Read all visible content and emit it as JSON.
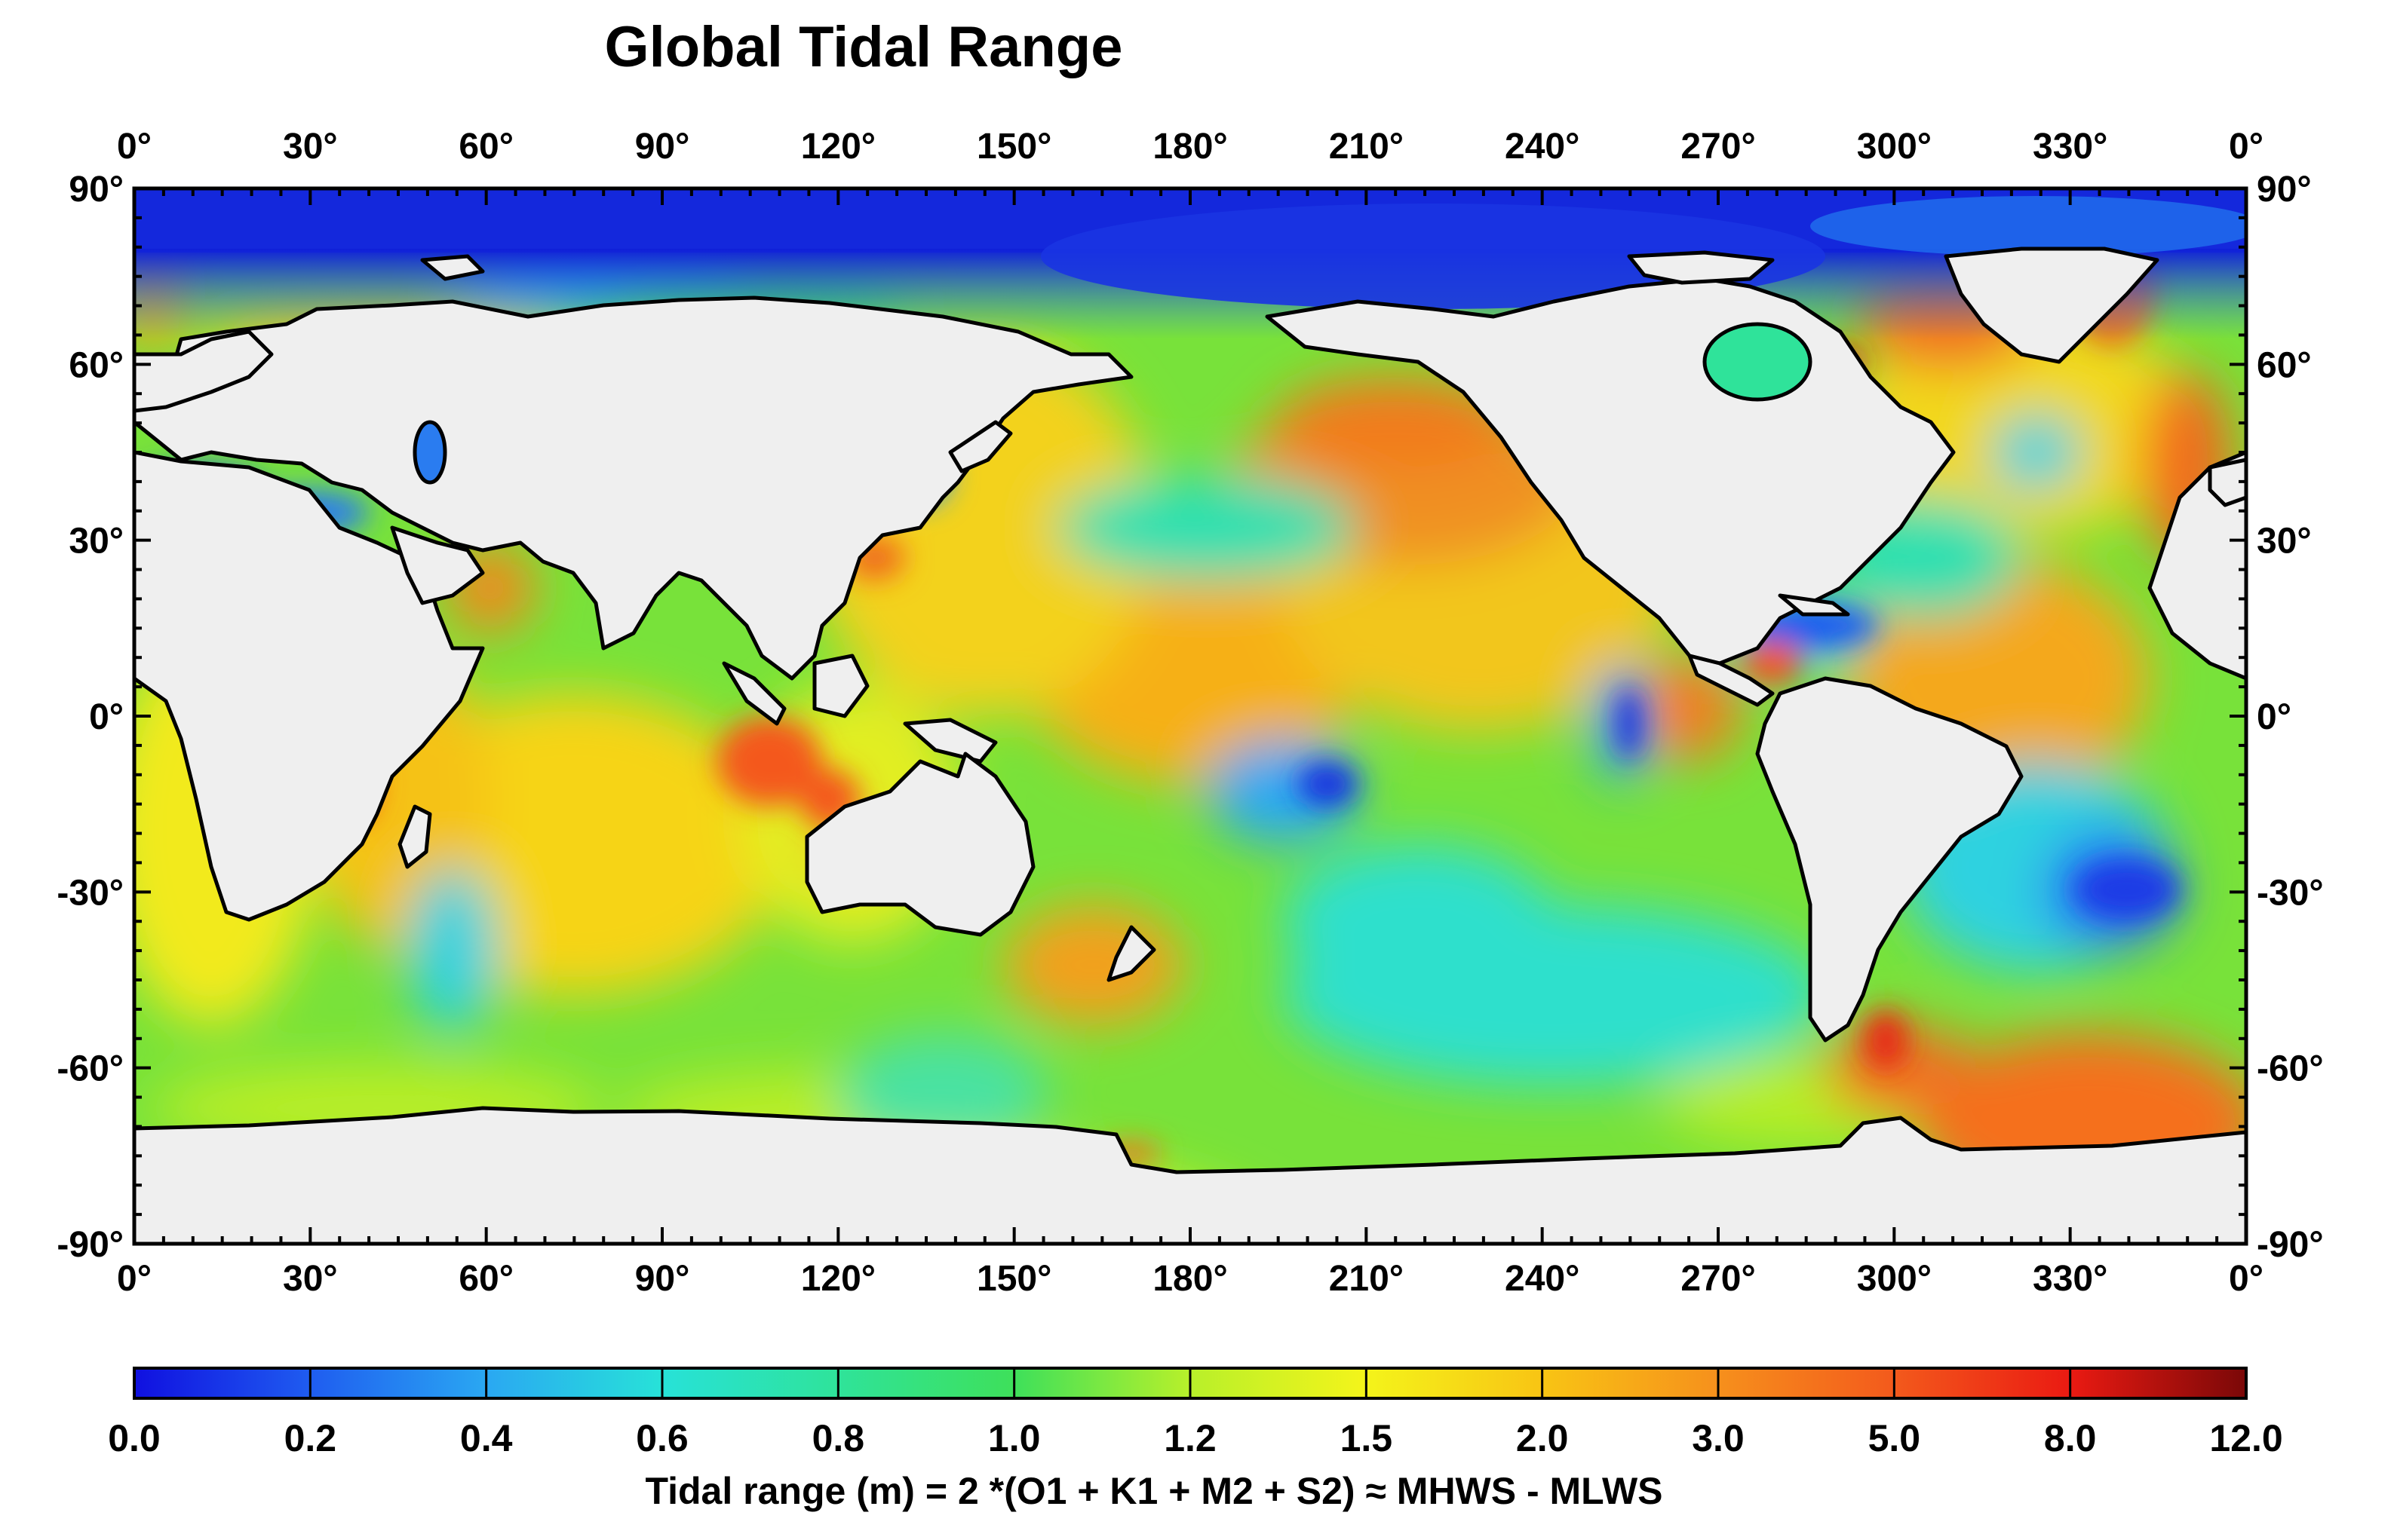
{
  "title": "Global Tidal Range",
  "x_ticks": [
    "0°",
    "30°",
    "60°",
    "90°",
    "120°",
    "150°",
    "180°",
    "210°",
    "240°",
    "270°",
    "300°",
    "330°",
    "0°"
  ],
  "y_ticks": [
    "90°",
    "60°",
    "30°",
    "0°",
    "-30°",
    "-60°",
    "-90°"
  ],
  "colorbar": {
    "labels": [
      "0.0",
      "0.2",
      "0.4",
      "0.6",
      "0.8",
      "1.0",
      "1.2",
      "1.5",
      "2.0",
      "3.0",
      "5.0",
      "8.0",
      "12.0"
    ],
    "colors": [
      "#1212e6",
      "#1f5cf0",
      "#2aa8f2",
      "#27e2d8",
      "#2fe39a",
      "#3ee05a",
      "#b8f02a",
      "#f4f41a",
      "#f8c414",
      "#f6901c",
      "#f35a1c",
      "#ea1a12",
      "#8a0c0c"
    ],
    "title": "Tidal range (m) = 2 *(O1 + K1 + M2 + S2) ≈ MHWS - MLWS"
  },
  "colors": {
    "land": "#efefef",
    "coast": "#000000",
    "arctic": "#1530e0"
  }
}
